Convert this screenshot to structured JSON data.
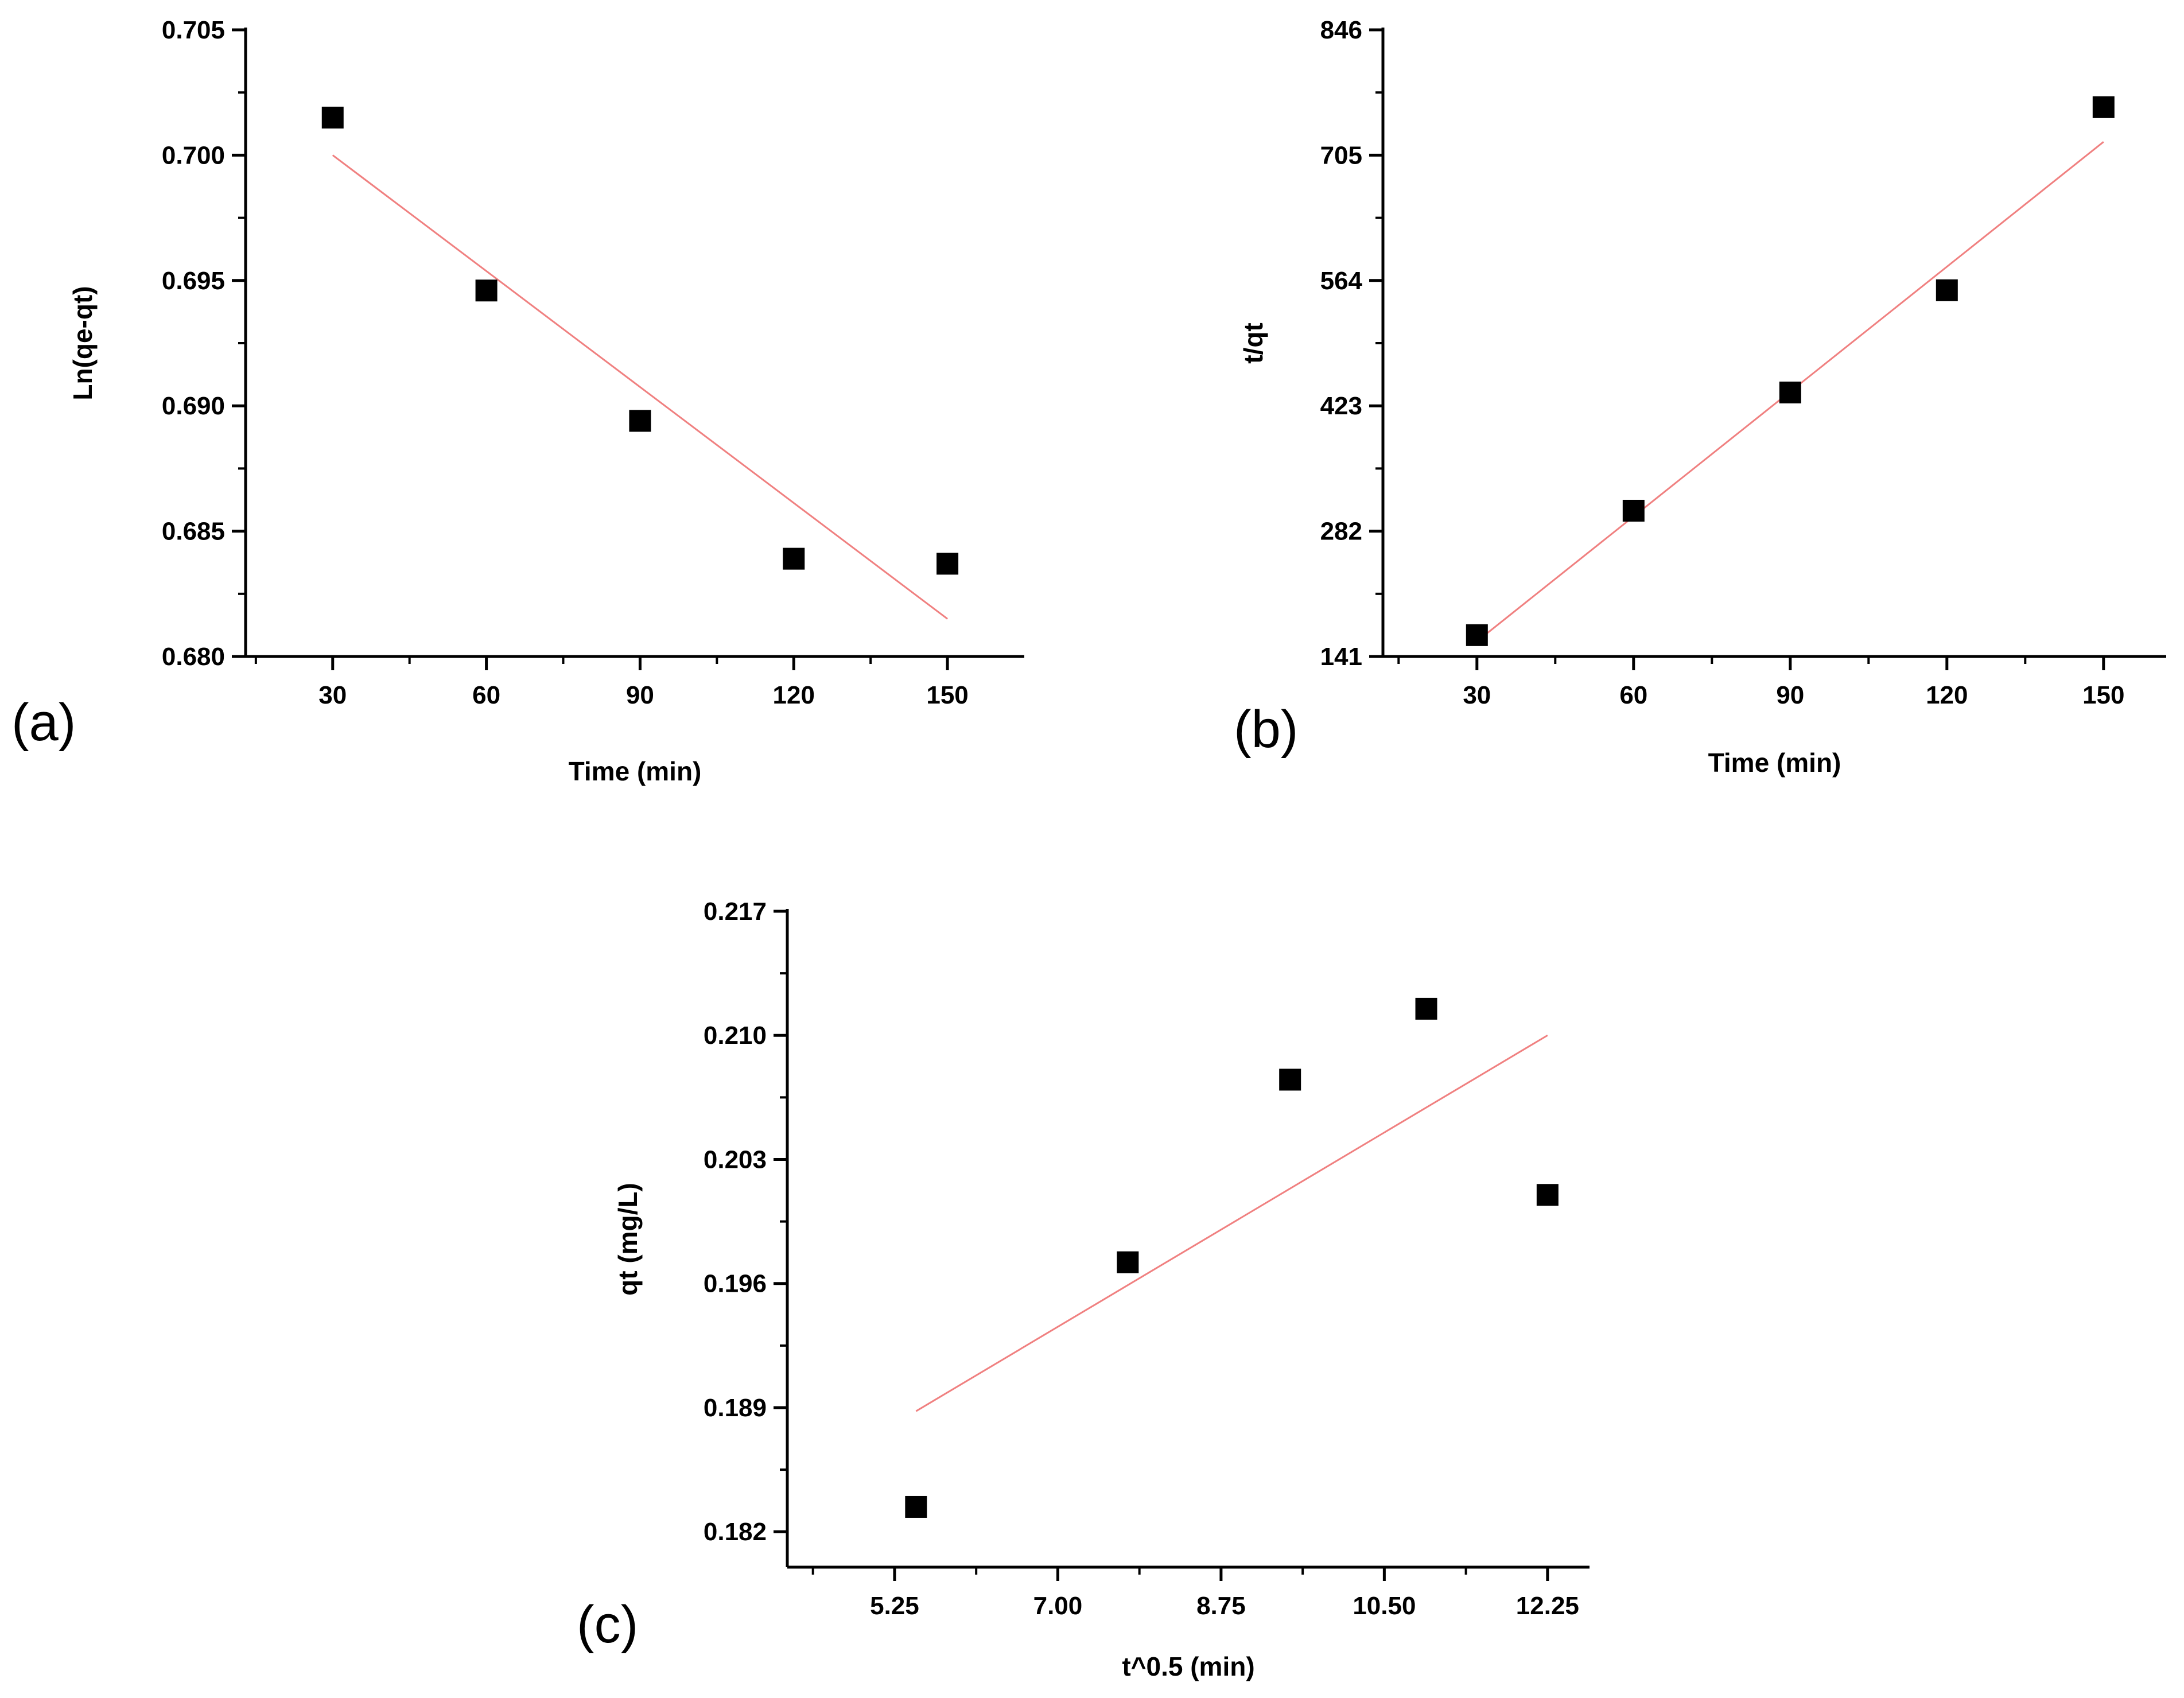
{
  "chart_data": [
    {
      "id": "a",
      "type": "scatter",
      "panel_label": "(a)",
      "title": "",
      "xlabel": "Time (min)",
      "ylabel": "Ln(qe-qt)",
      "xlim": [
        13,
        165
      ],
      "ylim": [
        0.68,
        0.705
      ],
      "xticks": [
        30,
        60,
        90,
        120,
        150
      ],
      "xtick_labels": [
        "30",
        "60",
        "90",
        "120",
        "150"
      ],
      "yticks": [
        0.68,
        0.685,
        0.69,
        0.695,
        0.7,
        0.705
      ],
      "ytick_labels": [
        "0.680",
        "0.685",
        "0.690",
        "0.695",
        "0.700",
        "0.705"
      ],
      "x": [
        30,
        60,
        90,
        120,
        150
      ],
      "y": [
        0.7015,
        0.6946,
        0.6894,
        0.6839,
        0.6837
      ],
      "fit": {
        "x": [
          30,
          150
        ],
        "y": [
          0.7,
          0.6815
        ]
      },
      "colors": {
        "points": "#000000",
        "fit": "#f08080"
      }
    },
    {
      "id": "b",
      "type": "scatter",
      "panel_label": "(b)",
      "title": "",
      "xlabel": "Time (min)",
      "ylabel": "t/qt",
      "xlim": [
        12,
        162
      ],
      "ylim": [
        141,
        846
      ],
      "xticks": [
        30,
        60,
        90,
        120,
        150
      ],
      "xtick_labels": [
        "30",
        "60",
        "90",
        "120",
        "150"
      ],
      "yticks": [
        141,
        282,
        423,
        564,
        705,
        846
      ],
      "ytick_labels": [
        "141",
        "282",
        "423",
        "564",
        "705",
        "846"
      ],
      "x": [
        30,
        60,
        90,
        120,
        150
      ],
      "y": [
        165,
        305,
        438,
        553,
        759
      ],
      "fit": {
        "x": [
          30,
          150
        ],
        "y": [
          158,
          720
        ]
      },
      "colors": {
        "points": "#000000",
        "fit": "#f08080"
      }
    },
    {
      "id": "c",
      "type": "scatter",
      "panel_label": "(c)",
      "title": "",
      "xlabel": "t^0.5 (min)",
      "ylabel": "qt (mg/L)",
      "xlim": [
        4.1,
        12.7
      ],
      "ylim": [
        0.18,
        0.217
      ],
      "xticks": [
        5.25,
        7.0,
        8.75,
        10.5,
        12.25
      ],
      "xtick_labels": [
        "5.25",
        "7.00",
        "8.75",
        "10.50",
        "12.25"
      ],
      "yticks": [
        0.182,
        0.189,
        0.196,
        0.203,
        0.21,
        0.217
      ],
      "ytick_labels": [
        "0.182",
        "0.189",
        "0.196",
        "0.203",
        "0.210",
        "0.217"
      ],
      "x": [
        5.48,
        7.75,
        9.49,
        10.95,
        12.25
      ],
      "y": [
        0.1834,
        0.1972,
        0.2075,
        0.2115,
        0.201
      ],
      "fit": {
        "x": [
          5.48,
          12.25
        ],
        "y": [
          0.1888,
          0.21
        ]
      },
      "colors": {
        "points": "#000000",
        "fit": "#f08080"
      }
    }
  ]
}
